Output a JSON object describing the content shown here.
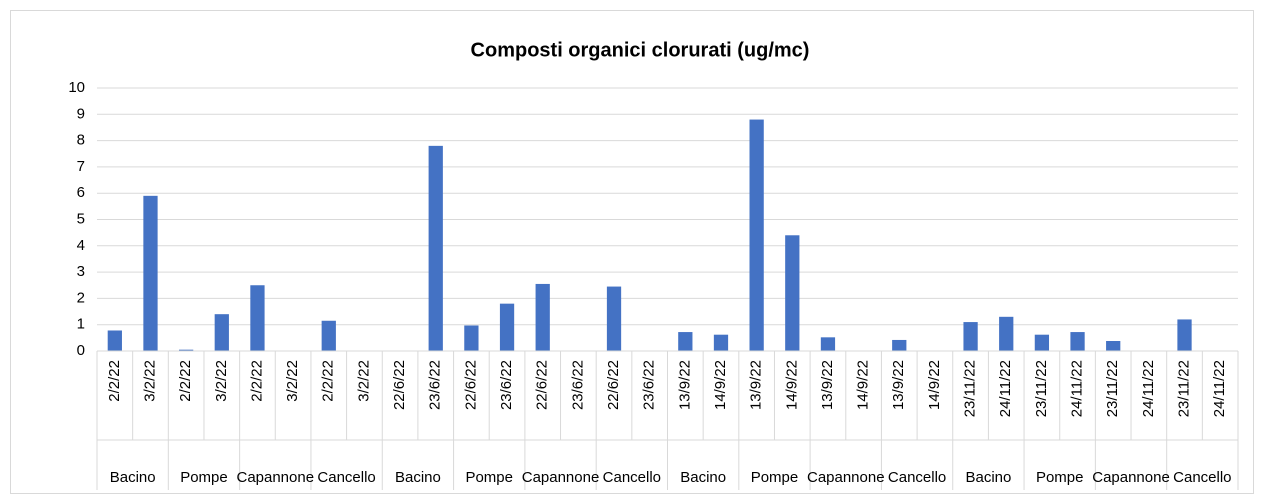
{
  "chart_data": {
    "type": "bar",
    "title": "Composti organici clorurati (ug/mc)",
    "categories": [
      "2/2/22",
      "3/2/22",
      "2/2/22",
      "3/2/22",
      "2/2/22",
      "3/2/22",
      "2/2/22",
      "3/2/22",
      "22/6/22",
      "23/6/22",
      "22/6/22",
      "23/6/22",
      "22/6/22",
      "23/6/22",
      "22/6/22",
      "23/6/22",
      "13/9/22",
      "14/9/22",
      "13/9/22",
      "14/9/22",
      "13/9/22",
      "14/9/22",
      "13/9/22",
      "14/9/22",
      "23/11/22",
      "24/11/22",
      "23/11/22",
      "24/11/22",
      "23/11/22",
      "24/11/22",
      "23/11/22",
      "24/11/22"
    ],
    "groups": [
      "Bacino",
      "Pompe",
      "Capannone",
      "Cancello",
      "Bacino",
      "Pompe",
      "Capannone",
      "Cancello",
      "Bacino",
      "Pompe",
      "Capannone",
      "Cancello",
      "Bacino",
      "Pompe",
      "Capannone",
      "Cancello"
    ],
    "values": [
      0.78,
      5.9,
      0.05,
      1.4,
      2.5,
      null,
      1.15,
      null,
      null,
      7.8,
      0.97,
      1.8,
      2.55,
      null,
      2.45,
      null,
      0.72,
      0.62,
      8.8,
      4.4,
      0.52,
      null,
      0.42,
      null,
      1.1,
      1.3,
      0.62,
      0.72,
      0.38,
      null,
      1.2,
      null
    ],
    "color": "#4472c4",
    "ylim": [
      0,
      10
    ],
    "yticks": [
      0,
      1,
      2,
      3,
      4,
      5,
      6,
      7,
      8,
      9,
      10
    ],
    "grid": true
  }
}
